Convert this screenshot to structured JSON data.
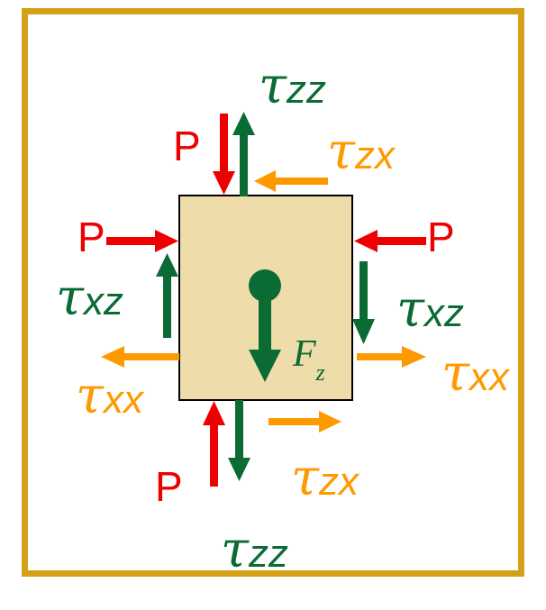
{
  "colors": {
    "border": "#d4a017",
    "block_fill": "#eedcaa",
    "pressure": "#ee0000",
    "normal_stress": "#0a6b34",
    "shear_stress": "#ff9900"
  },
  "labels": {
    "p_top": "P",
    "p_left": "P",
    "p_right": "P",
    "p_bottom": "P",
    "tau_symbol": "τ",
    "tau_zz_top_sub": "zz",
    "tau_zx_top_sub": "zx",
    "tau_xz_left_sub": "xz",
    "tau_xz_right_sub": "xz",
    "tau_xx_left_sub": "xx",
    "tau_xx_right_sub": "xx",
    "tau_zx_bottom_sub": "zx",
    "tau_zz_bottom_sub": "zz",
    "force_symbol": "F",
    "force_sub": "z"
  }
}
